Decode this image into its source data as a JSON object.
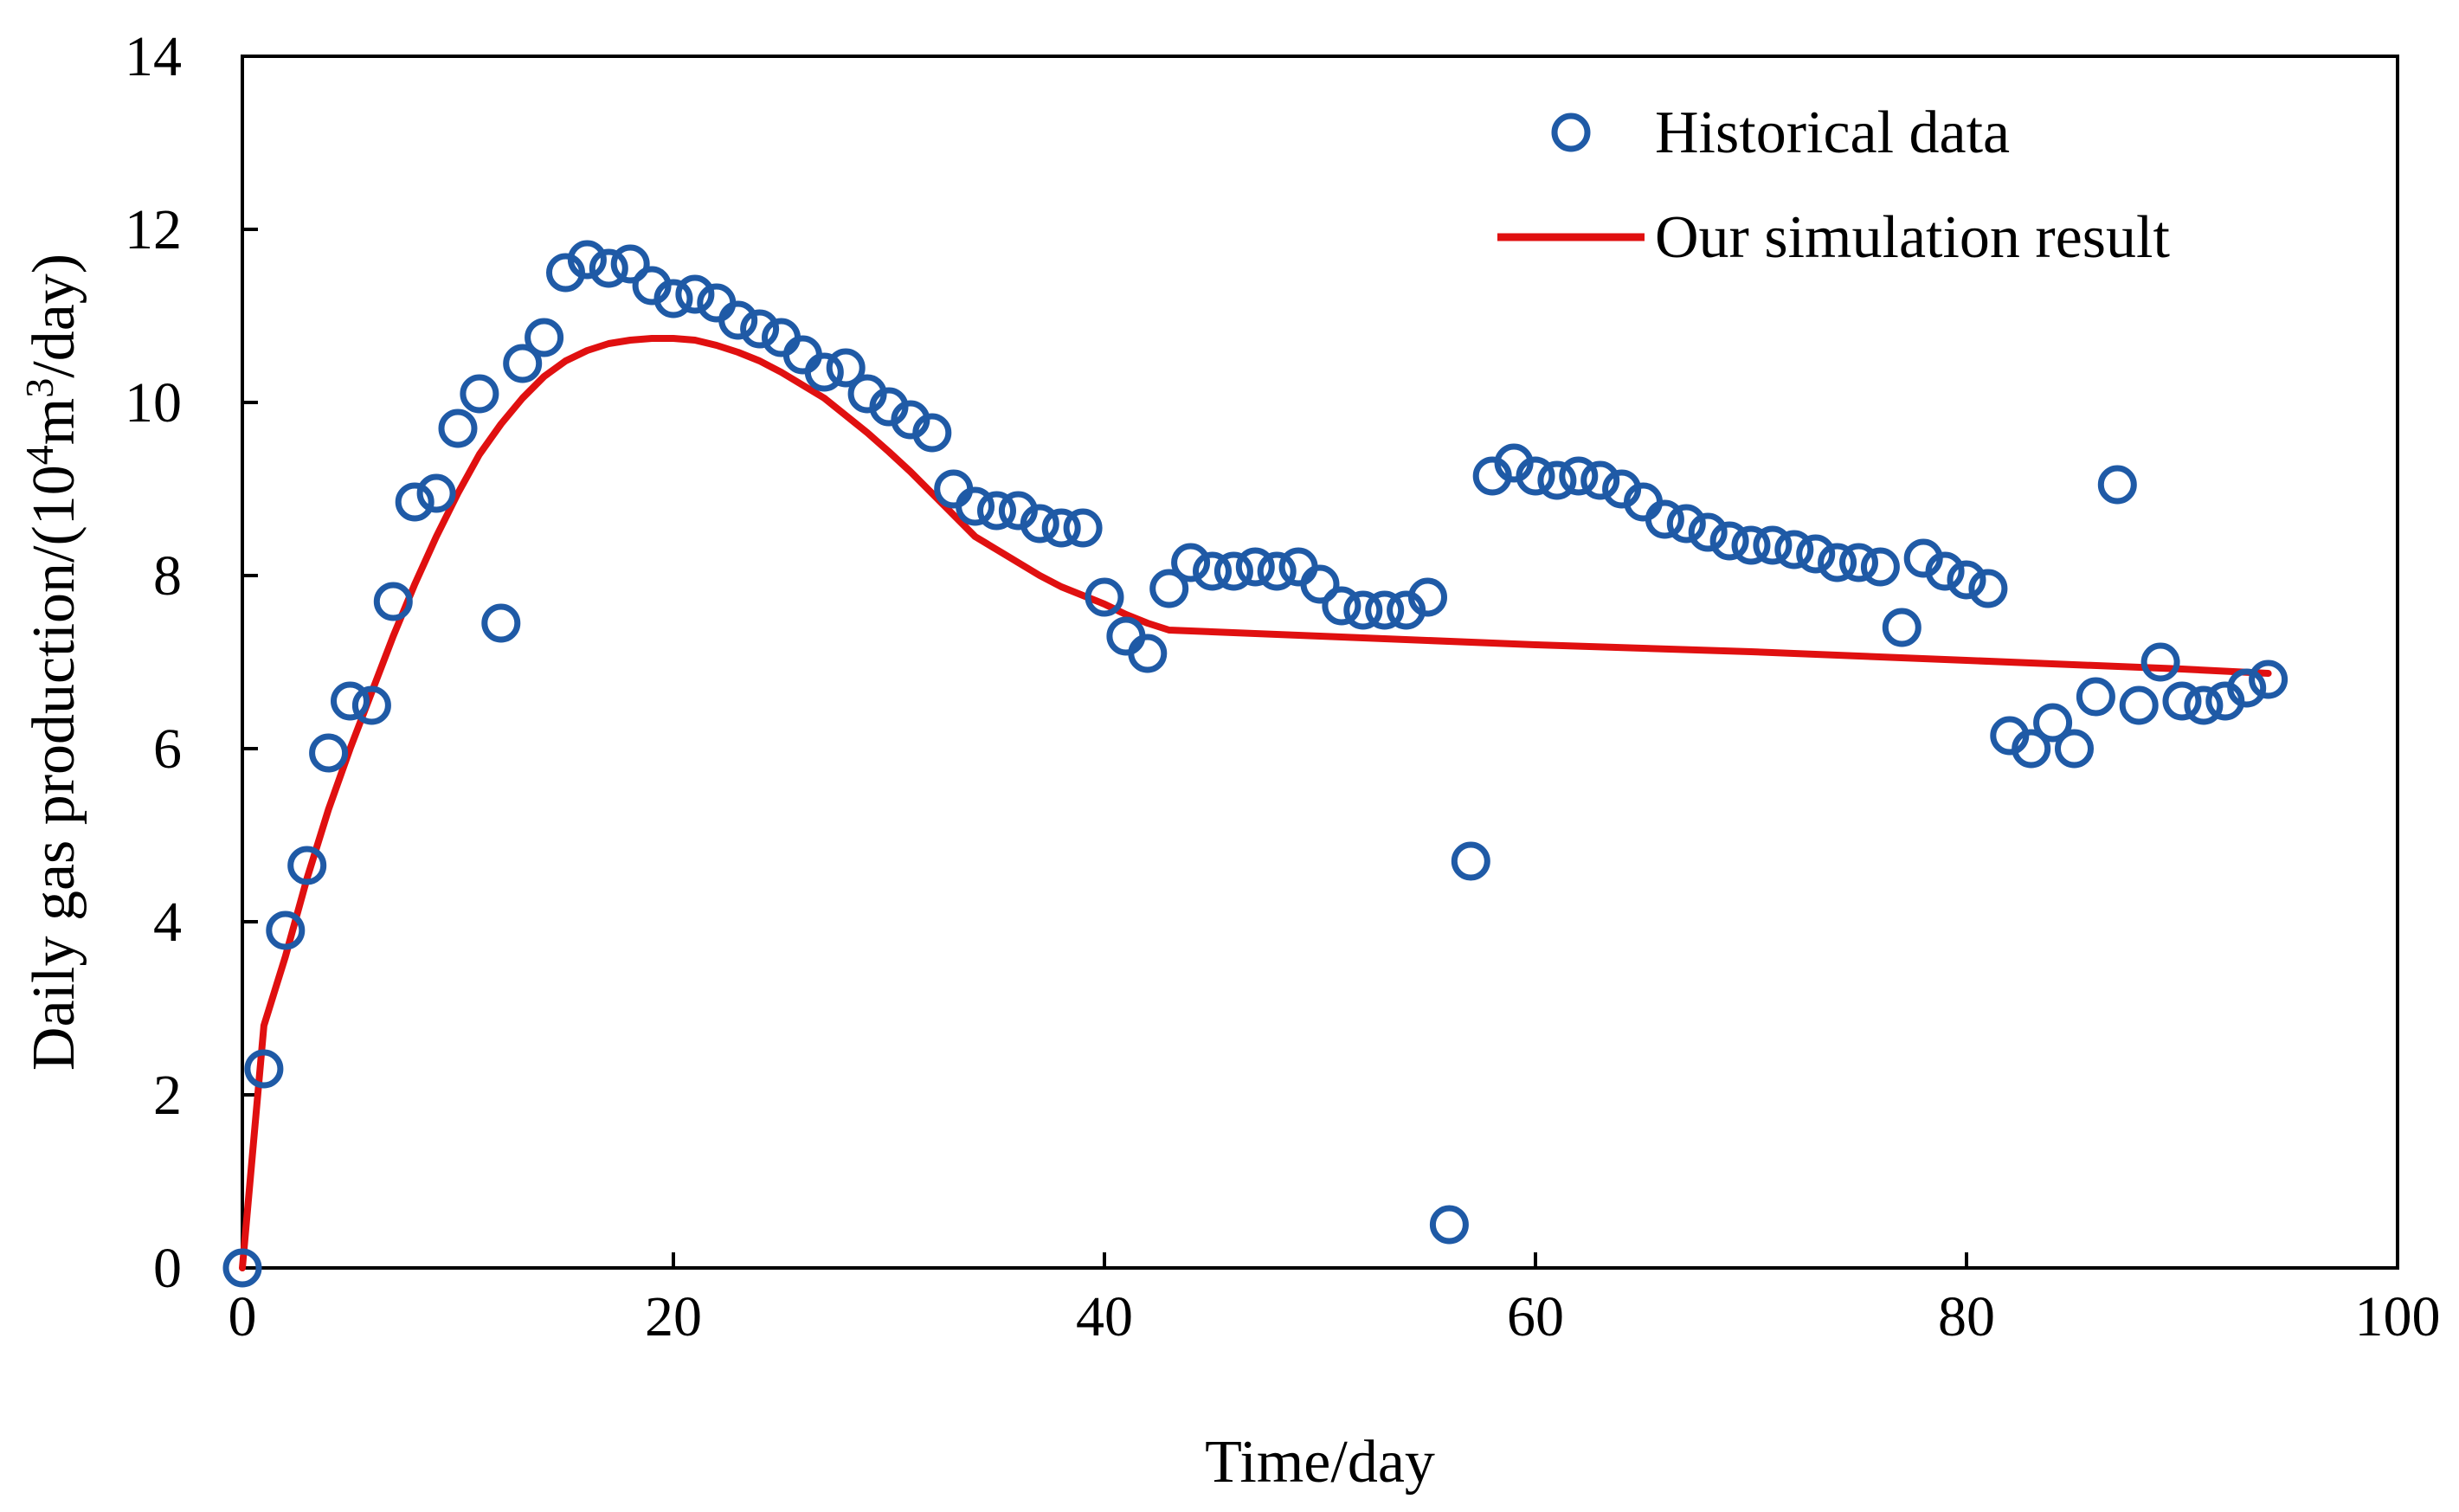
{
  "chart_data": {
    "type": "scatter",
    "xlabel": "Time/day",
    "ylabel_parts": {
      "before": "Daily gas production/(10",
      "sup1": "4",
      "middle": "m",
      "sup2": "3",
      "after": "/day)"
    },
    "xlim": [
      0,
      100
    ],
    "ylim": [
      0,
      14
    ],
    "x_ticks": [
      "0",
      "20",
      "40",
      "60",
      "80",
      "100"
    ],
    "y_ticks": [
      "0",
      "2",
      "4",
      "6",
      "8",
      "10",
      "12",
      "14"
    ],
    "grid": false,
    "legend_position": "top-right",
    "colors": {
      "historical": "#1f5aa6",
      "simulation": "#e01010"
    },
    "series": [
      {
        "name": "Historical data",
        "kind": "markers",
        "points": [
          [
            0,
            0
          ],
          [
            1,
            2.3
          ],
          [
            2,
            3.9
          ],
          [
            3,
            4.65
          ],
          [
            4,
            5.95
          ],
          [
            5,
            6.55
          ],
          [
            6,
            6.5
          ],
          [
            7,
            7.7
          ],
          [
            8,
            8.85
          ],
          [
            9,
            8.95
          ],
          [
            10,
            9.7
          ],
          [
            11,
            10.1
          ],
          [
            12,
            7.45
          ],
          [
            13,
            10.45
          ],
          [
            14,
            10.75
          ],
          [
            15,
            11.5
          ],
          [
            16,
            11.65
          ],
          [
            17,
            11.55
          ],
          [
            18,
            11.6
          ],
          [
            19,
            11.35
          ],
          [
            20,
            11.2
          ],
          [
            21,
            11.25
          ],
          [
            22,
            11.15
          ],
          [
            23,
            10.95
          ],
          [
            24,
            10.85
          ],
          [
            25,
            10.75
          ],
          [
            26,
            10.55
          ],
          [
            27,
            10.35
          ],
          [
            28,
            10.4
          ],
          [
            29,
            10.1
          ],
          [
            30,
            9.95
          ],
          [
            31,
            9.8
          ],
          [
            32,
            9.65
          ],
          [
            33,
            9.0
          ],
          [
            34,
            8.8
          ],
          [
            35,
            8.75
          ],
          [
            36,
            8.75
          ],
          [
            37,
            8.6
          ],
          [
            38,
            8.55
          ],
          [
            39,
            8.55
          ],
          [
            40,
            7.75
          ],
          [
            41,
            7.3
          ],
          [
            42,
            7.1
          ],
          [
            43,
            7.85
          ],
          [
            44,
            8.15
          ],
          [
            45,
            8.05
          ],
          [
            46,
            8.05
          ],
          [
            47,
            8.1
          ],
          [
            48,
            8.05
          ],
          [
            49,
            8.1
          ],
          [
            50,
            7.9
          ],
          [
            51,
            7.65
          ],
          [
            52,
            7.6
          ],
          [
            53,
            7.6
          ],
          [
            54,
            7.6
          ],
          [
            55,
            7.75
          ],
          [
            56,
            0.5
          ],
          [
            57,
            4.7
          ],
          [
            58,
            9.15
          ],
          [
            59,
            9.3
          ],
          [
            60,
            9.15
          ],
          [
            61,
            9.1
          ],
          [
            62,
            9.15
          ],
          [
            63,
            9.1
          ],
          [
            64,
            9.0
          ],
          [
            65,
            8.85
          ],
          [
            66,
            8.65
          ],
          [
            67,
            8.6
          ],
          [
            68,
            8.5
          ],
          [
            69,
            8.4
          ],
          [
            70,
            8.35
          ],
          [
            71,
            8.35
          ],
          [
            72,
            8.3
          ],
          [
            73,
            8.25
          ],
          [
            74,
            8.15
          ],
          [
            75,
            8.15
          ],
          [
            76,
            8.1
          ],
          [
            77,
            7.4
          ],
          [
            78,
            8.2
          ],
          [
            79,
            8.05
          ],
          [
            80,
            7.95
          ],
          [
            81,
            7.85
          ],
          [
            82,
            6.15
          ],
          [
            83,
            6.0
          ],
          [
            84,
            6.3
          ],
          [
            85,
            6.0
          ],
          [
            86,
            6.6
          ],
          [
            87,
            9.05
          ],
          [
            88,
            6.5
          ],
          [
            89,
            7.0
          ],
          [
            90,
            6.55
          ],
          [
            91,
            6.5
          ],
          [
            92,
            6.55
          ],
          [
            93,
            6.7
          ],
          [
            94,
            6.8
          ]
        ]
      },
      {
        "name": "Our simulation result",
        "kind": "line",
        "points": [
          [
            0,
            0
          ],
          [
            1,
            2.8
          ],
          [
            2,
            3.6
          ],
          [
            3,
            4.5
          ],
          [
            4,
            5.3
          ],
          [
            5,
            6.0
          ],
          [
            6,
            6.65
          ],
          [
            7,
            7.3
          ],
          [
            8,
            7.9
          ],
          [
            9,
            8.45
          ],
          [
            10,
            8.95
          ],
          [
            11,
            9.4
          ],
          [
            12,
            9.75
          ],
          [
            13,
            10.05
          ],
          [
            14,
            10.3
          ],
          [
            15,
            10.48
          ],
          [
            16,
            10.6
          ],
          [
            17,
            10.68
          ],
          [
            18,
            10.72
          ],
          [
            19,
            10.74
          ],
          [
            20,
            10.74
          ],
          [
            21,
            10.72
          ],
          [
            22,
            10.66
          ],
          [
            23,
            10.58
          ],
          [
            24,
            10.48
          ],
          [
            25,
            10.35
          ],
          [
            26,
            10.2
          ],
          [
            27,
            10.05
          ],
          [
            28,
            9.85
          ],
          [
            29,
            9.65
          ],
          [
            30,
            9.43
          ],
          [
            31,
            9.2
          ],
          [
            32,
            8.95
          ],
          [
            33,
            8.7
          ],
          [
            34,
            8.45
          ],
          [
            35,
            8.3
          ],
          [
            36,
            8.15
          ],
          [
            37,
            8.0
          ],
          [
            38,
            7.87
          ],
          [
            39,
            7.77
          ],
          [
            40,
            7.67
          ],
          [
            41,
            7.55
          ],
          [
            42,
            7.45
          ],
          [
            43,
            7.37
          ],
          [
            50,
            7.3
          ],
          [
            60,
            7.2
          ],
          [
            70,
            7.12
          ],
          [
            80,
            7.02
          ],
          [
            90,
            6.92
          ],
          [
            94,
            6.87
          ]
        ]
      }
    ]
  }
}
